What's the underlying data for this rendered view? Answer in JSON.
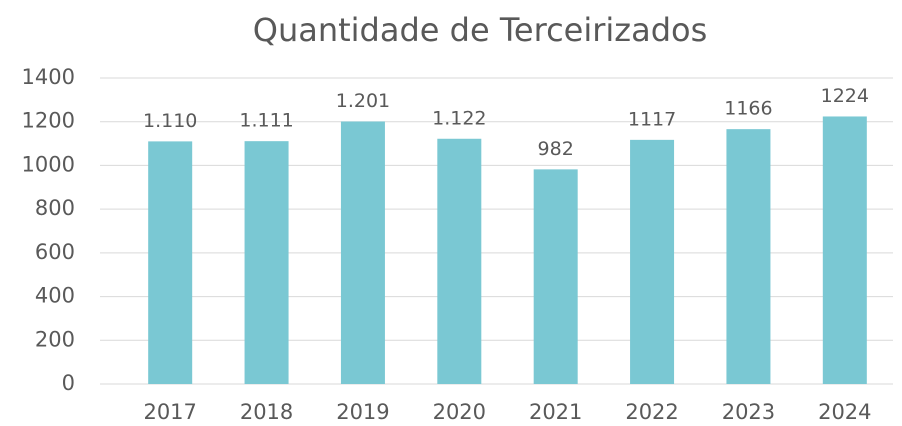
{
  "chart_data": {
    "type": "bar",
    "title": "Quantidade de Terceirizados",
    "categories": [
      "2017",
      "2018",
      "2019",
      "2020",
      "2021",
      "2022",
      "2023",
      "2024"
    ],
    "values": [
      1110,
      1111,
      1201,
      1122,
      982,
      1117,
      1166,
      1224
    ],
    "value_labels": [
      "1.110",
      "1.111",
      "1.201",
      "1.122",
      "982",
      "1117",
      "1166",
      "1224"
    ],
    "color": "#7ac8d3",
    "ylim": [
      0,
      1400
    ],
    "yticks": [
      0,
      200,
      400,
      600,
      800,
      1000,
      1200,
      1400
    ],
    "grid": true
  }
}
